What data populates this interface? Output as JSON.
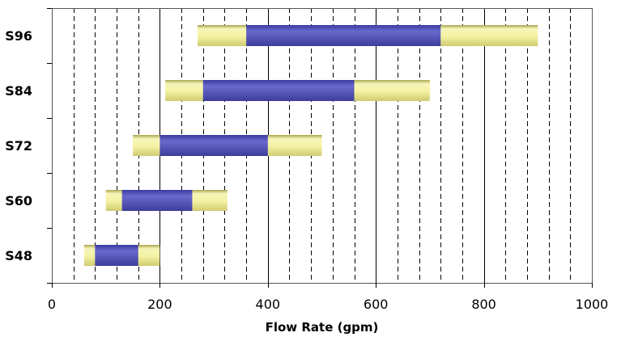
{
  "chart_data": {
    "type": "bar",
    "orientation": "horizontal",
    "chart_kind": "range",
    "xlabel": "Flow Rate (gpm)",
    "ylabel": "",
    "xlim": [
      0,
      1000
    ],
    "x_ticks": [
      "0",
      "200",
      "400",
      "600",
      "800",
      "1000"
    ],
    "minor_gridline_step": 40,
    "categories": [
      "S96",
      "S84",
      "S72",
      "S60",
      "S48"
    ],
    "series": [
      {
        "role": "outer",
        "color": "#f2f0a0",
        "ranges": [
          [
            270,
            900
          ],
          [
            210,
            700
          ],
          [
            150,
            500
          ],
          [
            100,
            325
          ],
          [
            60,
            200
          ]
        ]
      },
      {
        "role": "inner",
        "color": "#5a5ab8",
        "ranges": [
          [
            360,
            720
          ],
          [
            280,
            560
          ],
          [
            200,
            400
          ],
          [
            130,
            260
          ],
          [
            80,
            160
          ]
        ]
      }
    ],
    "grid": {
      "major_vertical": true,
      "minor_vertical_dashed": true
    },
    "legend": "none"
  }
}
